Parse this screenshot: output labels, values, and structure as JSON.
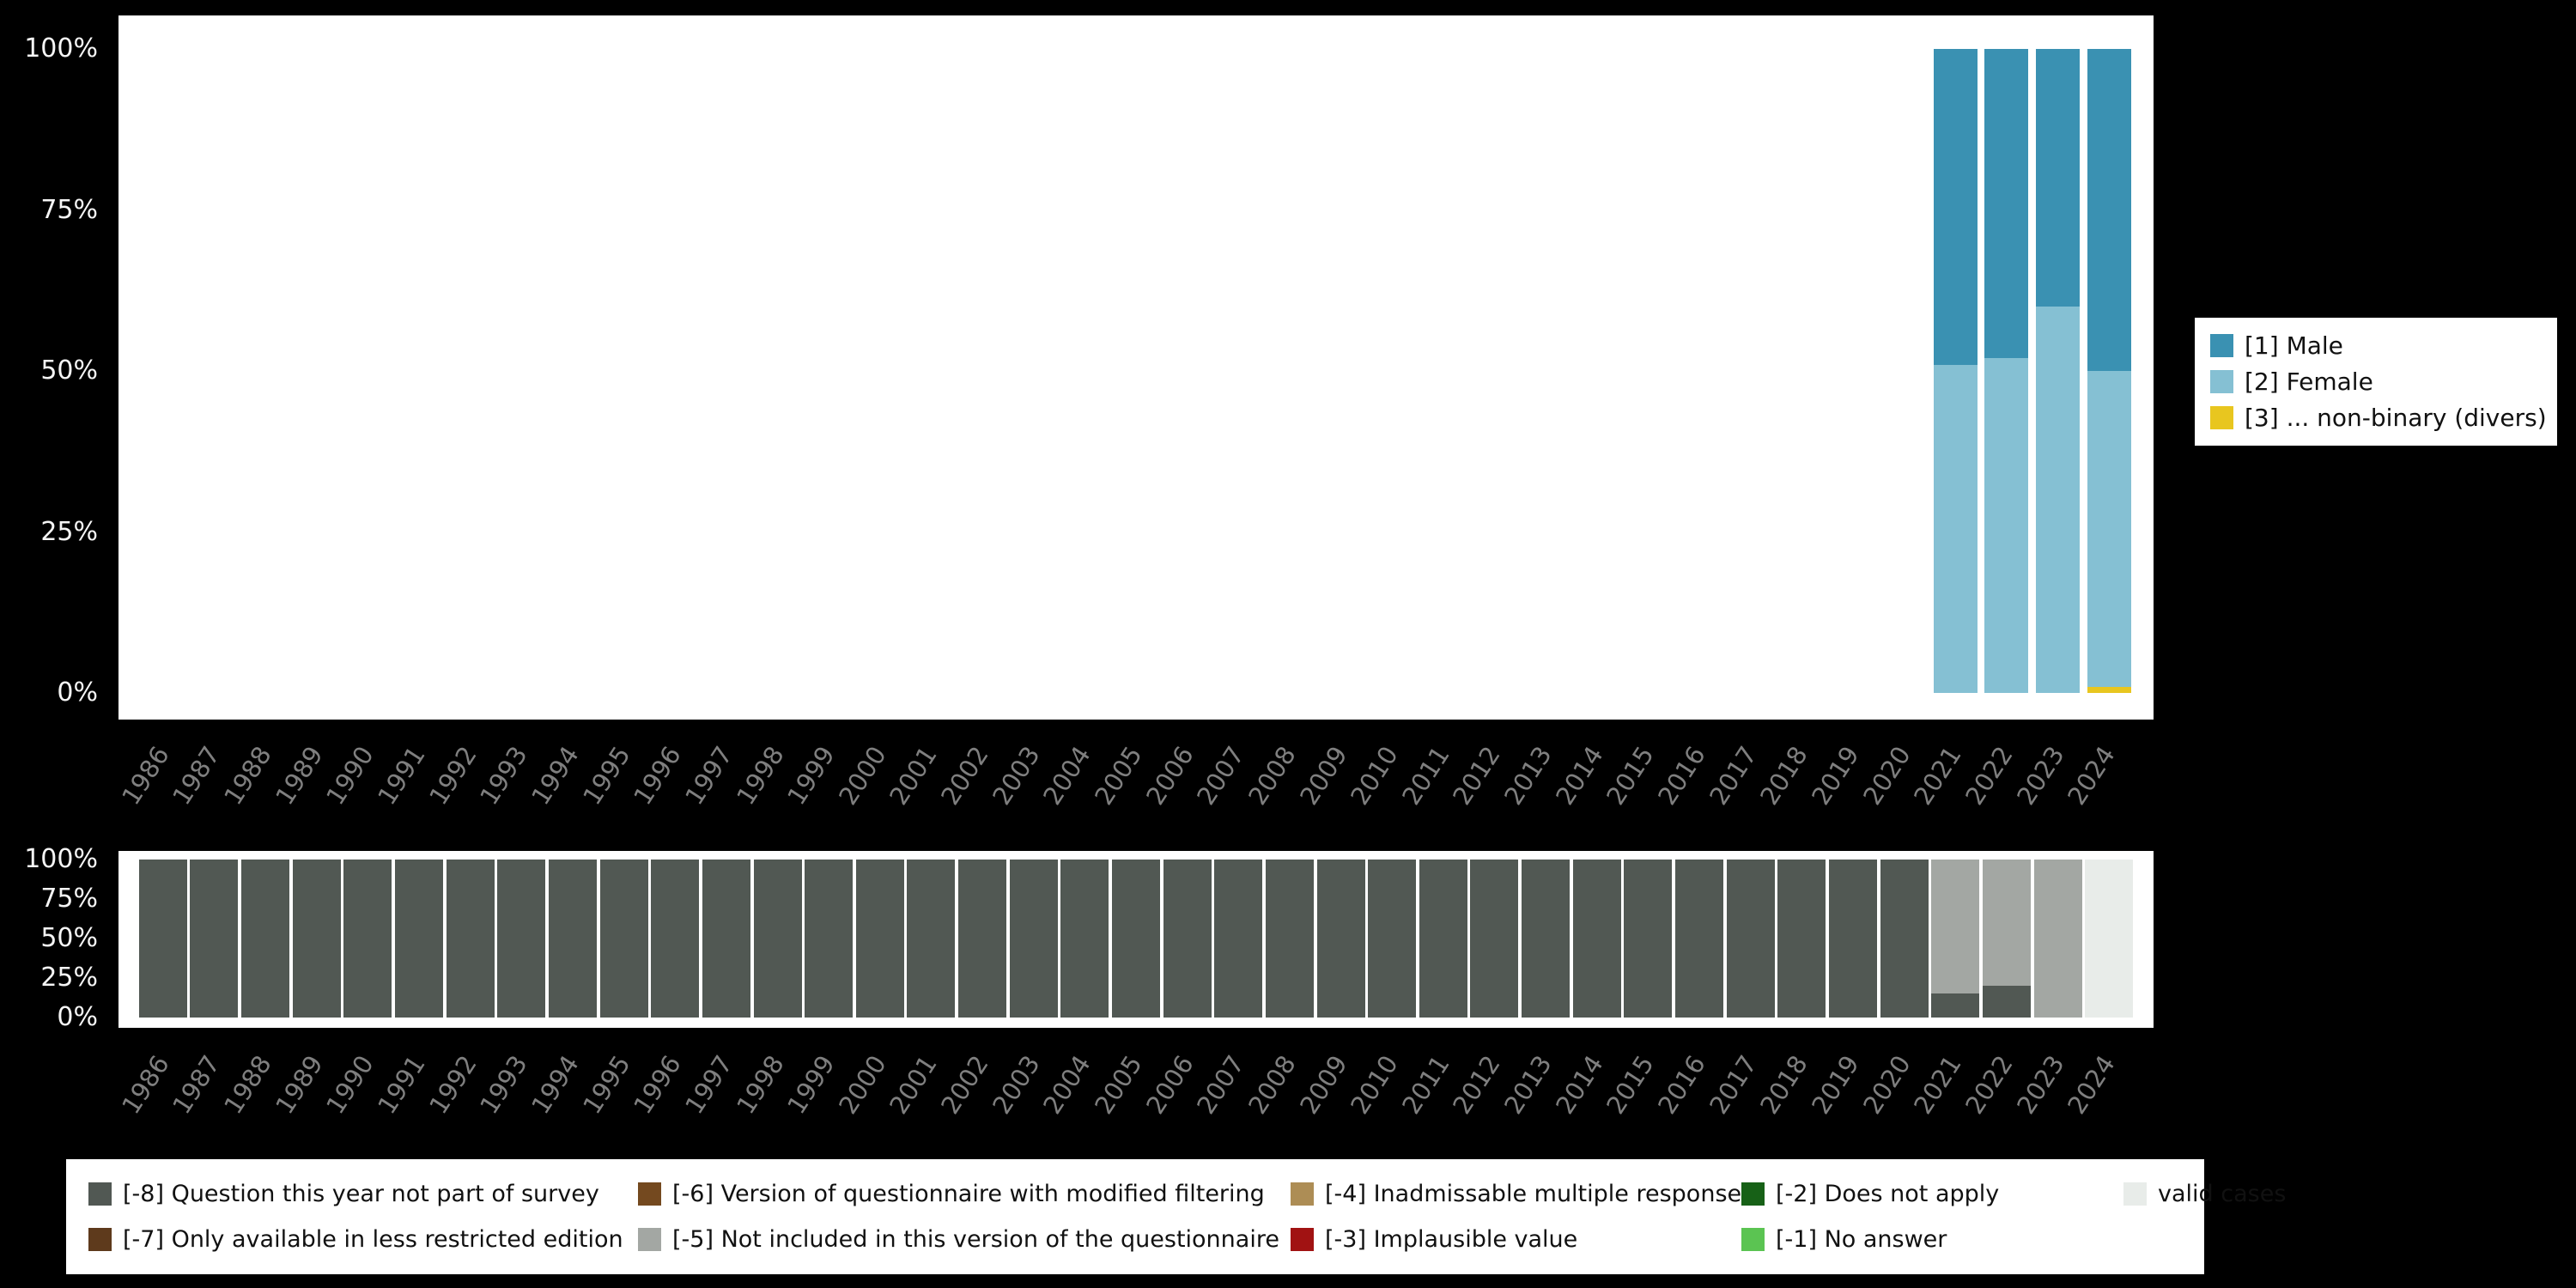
{
  "background": "#000000",
  "panel_color": "#ffffff",
  "axis": {
    "y_ticks": [
      "100%",
      "75%",
      "50%",
      "25%",
      "0%"
    ],
    "tick_color": "#f5f5f5",
    "year_label_color": "#7f7f7f"
  },
  "gender_legend": {
    "items": [
      {
        "label": "[1] Male",
        "color": "#3a91b2"
      },
      {
        "label": "[2] Female",
        "color": "#85c0d3"
      },
      {
        "label": "[3] ... non-binary (divers)",
        "color": "#e8c61f"
      }
    ]
  },
  "missing_legend": {
    "items": [
      {
        "label": "[-8] Question this year not part of survey",
        "color": "#515853"
      },
      {
        "label": "[-7] Only available in less restricted edition",
        "color": "#5e3a1c"
      },
      {
        "label": "[-6] Version of questionnaire with modified filtering",
        "color": "#74491f"
      },
      {
        "label": "[-5] Not included in this version of the questionnaire",
        "color": "#a3a7a3"
      },
      {
        "label": "[-4] Inadmissable multiple response",
        "color": "#ad8d55"
      },
      {
        "label": "[-3] Implausible value",
        "color": "#a11212"
      },
      {
        "label": "[-2] Does not apply",
        "color": "#176117"
      },
      {
        "label": "[-1] No answer",
        "color": "#5bc452"
      },
      {
        "label": "valid cases",
        "color": "#e8ece9"
      }
    ]
  },
  "chart_data": [
    {
      "type": "bar",
      "stacked": true,
      "normalized": "percent",
      "title": "",
      "xlabel": "",
      "ylabel": "",
      "ylim": [
        0,
        100
      ],
      "y_ticks": [
        "100%",
        "75%",
        "50%",
        "25%",
        "0%"
      ],
      "legend_position": "right",
      "categories": [
        "1986",
        "1987",
        "1988",
        "1989",
        "1990",
        "1991",
        "1992",
        "1993",
        "1994",
        "1995",
        "1996",
        "1997",
        "1998",
        "1999",
        "2000",
        "2001",
        "2002",
        "2003",
        "2004",
        "2005",
        "2006",
        "2007",
        "2008",
        "2009",
        "2010",
        "2011",
        "2012",
        "2013",
        "2014",
        "2015",
        "2016",
        "2017",
        "2018",
        "2019",
        "2020",
        "2021",
        "2022",
        "2023",
        "2024"
      ],
      "series": [
        {
          "name": "[1] Male",
          "color": "#3a91b2",
          "values": [
            0,
            0,
            0,
            0,
            0,
            0,
            0,
            0,
            0,
            0,
            0,
            0,
            0,
            0,
            0,
            0,
            0,
            0,
            0,
            0,
            0,
            0,
            0,
            0,
            0,
            0,
            0,
            0,
            0,
            0,
            0,
            0,
            0,
            0,
            0,
            49,
            48,
            40,
            50
          ]
        },
        {
          "name": "[2] Female",
          "color": "#85c0d3",
          "values": [
            0,
            0,
            0,
            0,
            0,
            0,
            0,
            0,
            0,
            0,
            0,
            0,
            0,
            0,
            0,
            0,
            0,
            0,
            0,
            0,
            0,
            0,
            0,
            0,
            0,
            0,
            0,
            0,
            0,
            0,
            0,
            0,
            0,
            0,
            0,
            51,
            52,
            60,
            49
          ]
        },
        {
          "name": "[3] ... non-binary (divers)",
          "color": "#e8c61f",
          "values": [
            0,
            0,
            0,
            0,
            0,
            0,
            0,
            0,
            0,
            0,
            0,
            0,
            0,
            0,
            0,
            0,
            0,
            0,
            0,
            0,
            0,
            0,
            0,
            0,
            0,
            0,
            0,
            0,
            0,
            0,
            0,
            0,
            0,
            0,
            0,
            0,
            0,
            0,
            1
          ]
        }
      ]
    },
    {
      "type": "bar",
      "stacked": true,
      "normalized": "percent",
      "title": "",
      "xlabel": "",
      "ylabel": "",
      "ylim": [
        0,
        100
      ],
      "y_ticks": [
        "100%",
        "75%",
        "50%",
        "25%",
        "0%"
      ],
      "legend_position": "bottom",
      "categories": [
        "1986",
        "1987",
        "1988",
        "1989",
        "1990",
        "1991",
        "1992",
        "1993",
        "1994",
        "1995",
        "1996",
        "1997",
        "1998",
        "1999",
        "2000",
        "2001",
        "2002",
        "2003",
        "2004",
        "2005",
        "2006",
        "2007",
        "2008",
        "2009",
        "2010",
        "2011",
        "2012",
        "2013",
        "2014",
        "2015",
        "2016",
        "2017",
        "2018",
        "2019",
        "2020",
        "2021",
        "2022",
        "2023",
        "2024"
      ],
      "series": [
        {
          "name": "valid cases",
          "color": "#e8ece9",
          "values": [
            0,
            0,
            0,
            0,
            0,
            0,
            0,
            0,
            0,
            0,
            0,
            0,
            0,
            0,
            0,
            0,
            0,
            0,
            0,
            0,
            0,
            0,
            0,
            0,
            0,
            0,
            0,
            0,
            0,
            0,
            0,
            0,
            0,
            0,
            0,
            0,
            0,
            0,
            100
          ]
        },
        {
          "name": "[-5] Not included in this version of the questionnaire",
          "color": "#a3a7a3",
          "values": [
            0,
            0,
            0,
            0,
            0,
            0,
            0,
            0,
            0,
            0,
            0,
            0,
            0,
            0,
            0,
            0,
            0,
            0,
            0,
            0,
            0,
            0,
            0,
            0,
            0,
            0,
            0,
            0,
            0,
            0,
            0,
            0,
            0,
            0,
            0,
            85,
            80,
            100,
            0
          ]
        },
        {
          "name": "[-8] Question this year not part of survey",
          "color": "#515853",
          "values": [
            100,
            100,
            100,
            100,
            100,
            100,
            100,
            100,
            100,
            100,
            100,
            100,
            100,
            100,
            100,
            100,
            100,
            100,
            100,
            100,
            100,
            100,
            100,
            100,
            100,
            100,
            100,
            100,
            100,
            100,
            100,
            100,
            100,
            100,
            100,
            15,
            20,
            0,
            0
          ]
        }
      ]
    }
  ]
}
